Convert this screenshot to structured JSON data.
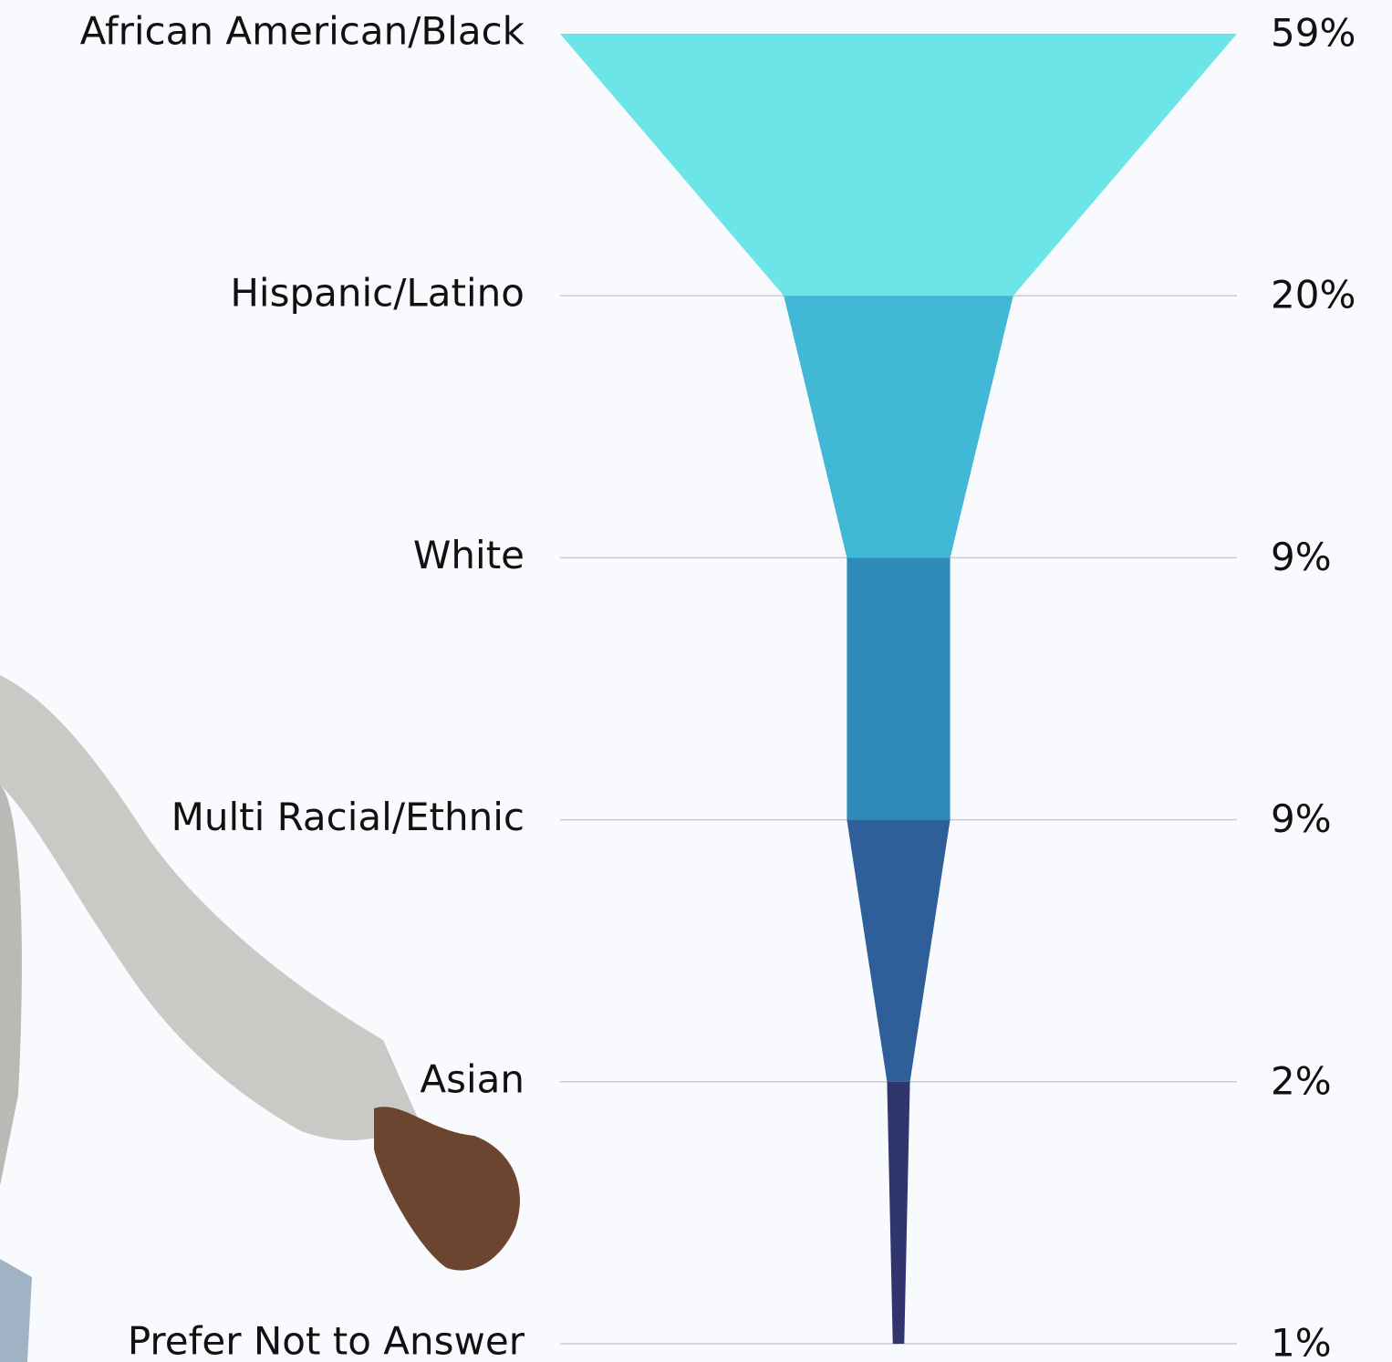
{
  "chart_data": {
    "type": "funnel",
    "categories": [
      "African American/Black",
      "Hispanic/Latino",
      "White",
      "Multi Racial/Ethnic",
      "Asian",
      "Prefer Not to Answer"
    ],
    "values": [
      59,
      20,
      9,
      9,
      2,
      1
    ],
    "value_labels": [
      "59%",
      "20%",
      "9%",
      "9%",
      "2%",
      "1%"
    ],
    "colors": [
      "#6ce5e8",
      "#41b8d5",
      "#2d8bba",
      "#2f5f98",
      "#31356e"
    ],
    "grid": true
  }
}
